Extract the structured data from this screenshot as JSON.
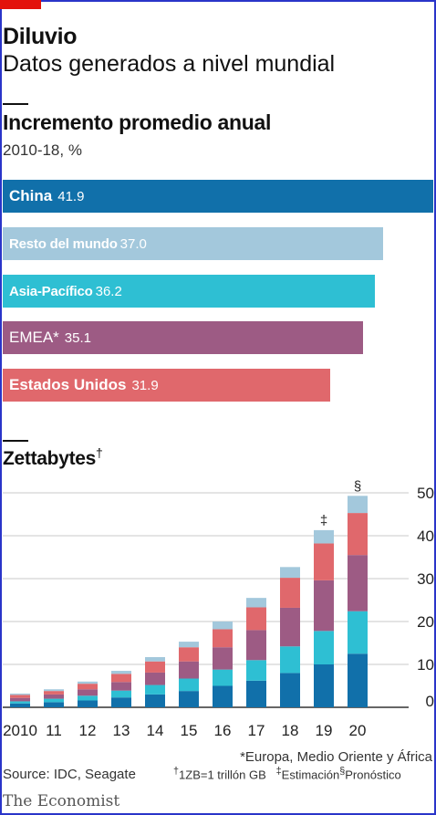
{
  "title": "Diluvio",
  "subtitle": "Datos generados a nivel mundial",
  "bar_chart_title": "Incremento promedio anual",
  "bar_chart_subtitle": "2010-18, %",
  "zettabytes_label": "Zettabytes",
  "zettabytes_mark": "†",
  "colors": {
    "china": "#1170aa",
    "resto": "#a3c8dc",
    "asia": "#2ebfd3",
    "emea": "#9d5b84",
    "eeuu": "#e0686c",
    "frame": "#2a35c9",
    "brand_red": "#e3120b"
  },
  "chart_data": [
    {
      "type": "bar",
      "orientation": "horizontal",
      "title": "Incremento promedio anual",
      "subtitle": "2010-18, %",
      "categories": [
        "China",
        "Resto del mundo",
        "Asia-Pacífico",
        "EMEA*",
        "Estados Unidos"
      ],
      "values": [
        41.9,
        37.0,
        36.2,
        35.1,
        31.9
      ],
      "value_labels": [
        "41.9",
        "37.0",
        "36.2",
        "35.1",
        "31.9"
      ],
      "xlim": [
        0,
        41.9
      ]
    },
    {
      "type": "bar",
      "stacked": true,
      "title": "Zettabytes",
      "categories": [
        "2010",
        "11",
        "12",
        "13",
        "14",
        "15",
        "16",
        "17",
        "18",
        "19",
        "20"
      ],
      "marks": {
        "19": "‡",
        "20": "§"
      },
      "series": [
        {
          "values": [
            0.9,
            1.2,
            1.6,
            2.3,
            3.0,
            3.8,
            5.0,
            6.2,
            8.0,
            10.0,
            12.5
          ]
        },
        {
          "values": [
            0.5,
            0.8,
            1.1,
            1.6,
            2.2,
            2.9,
            3.8,
            4.8,
            6.2,
            7.8,
            9.9
          ]
        },
        {
          "values": [
            0.8,
            1.0,
            1.5,
            2.0,
            2.9,
            4.0,
            5.2,
            7.0,
            9.0,
            11.8,
            13.1
          ]
        },
        {
          "values": [
            0.7,
            0.8,
            1.3,
            1.9,
            2.6,
            3.3,
            4.2,
            5.3,
            7.0,
            8.6,
            9.8
          ]
        },
        {
          "values": [
            0.3,
            0.4,
            0.5,
            0.7,
            1.0,
            1.3,
            1.8,
            2.2,
            2.5,
            3.1,
            4.0
          ]
        }
      ],
      "totals": [
        3.2,
        4.2,
        6.0,
        8.5,
        11.7,
        15.3,
        20.0,
        25.5,
        32.7,
        41.3,
        49.3
      ],
      "ylim": [
        0,
        50
      ],
      "yticks": [
        0,
        10,
        20,
        30,
        40,
        50
      ],
      "grid": true,
      "y_axis_side": "right"
    }
  ],
  "footnotes": {
    "source": "Source: IDC, Seagate",
    "emea": "*Europa, Medio Oriente y África",
    "zb_mark": "†",
    "zb": "1ZB=1 trillón GB",
    "est_mark": "‡",
    "est": "Estimación",
    "forecast_mark": "§",
    "forecast": "Pronóstico"
  },
  "brand": "The Economist"
}
